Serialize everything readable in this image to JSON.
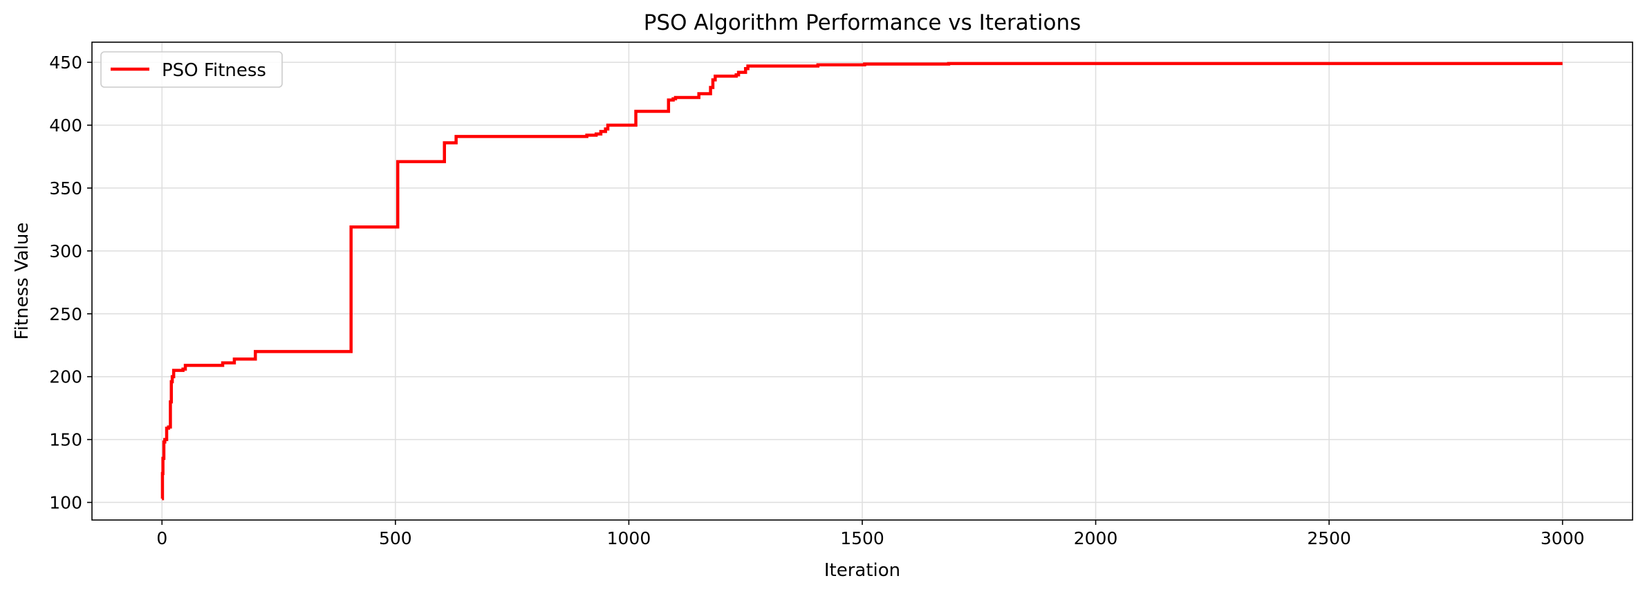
{
  "chart_data": {
    "type": "line",
    "title": "PSO Algorithm Performance vs Iterations",
    "xlabel": "Iteration",
    "ylabel": "Fitness Value",
    "xlim": [
      -150,
      3150
    ],
    "ylim": [
      86,
      466
    ],
    "xticks": [
      0,
      500,
      1000,
      1500,
      2000,
      2500,
      3000
    ],
    "yticks": [
      100,
      150,
      200,
      250,
      300,
      350,
      400,
      450
    ],
    "grid": true,
    "legend_position": "top-left",
    "step": true,
    "series": [
      {
        "name": "PSO Fitness",
        "color": "#ff0000",
        "x": [
          0,
          1,
          2,
          4,
          6,
          10,
          14,
          18,
          20,
          22,
          25,
          45,
          50,
          120,
          130,
          150,
          155,
          195,
          200,
          400,
          405,
          500,
          505,
          600,
          605,
          625,
          630,
          900,
          910,
          930,
          940,
          950,
          955,
          1010,
          1015,
          1080,
          1085,
          1095,
          1100,
          1145,
          1150,
          1170,
          1175,
          1180,
          1185,
          1230,
          1235,
          1245,
          1250,
          1255,
          1260,
          1400,
          1405,
          1500,
          1505,
          1680,
          1685,
          3000
        ],
        "values": [
          103,
          123,
          135,
          148,
          150,
          159,
          160,
          180,
          196,
          200,
          205,
          206,
          209,
          209,
          211,
          211,
          214,
          214,
          220,
          220,
          319,
          319,
          371,
          371,
          386,
          386,
          391,
          391,
          392,
          393,
          395,
          397,
          400,
          400,
          411,
          411,
          420,
          421,
          422,
          422,
          425,
          425,
          430,
          436,
          439,
          440,
          442,
          442,
          445,
          447,
          447,
          447,
          448,
          448,
          448.6,
          448.6,
          449,
          449
        ]
      }
    ]
  }
}
